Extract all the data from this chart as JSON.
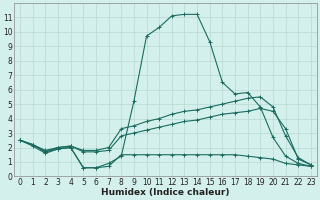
{
  "xlabel": "Humidex (Indice chaleur)",
  "xlim": [
    -0.5,
    23.5
  ],
  "ylim": [
    0,
    12
  ],
  "bg_color": "#d4f0ec",
  "grid_color": "#b8d8d4",
  "line_color": "#1a6b5e",
  "xticks": [
    0,
    1,
    2,
    3,
    4,
    5,
    6,
    7,
    8,
    9,
    10,
    11,
    12,
    13,
    14,
    15,
    16,
    17,
    18,
    19,
    20,
    21,
    22,
    23
  ],
  "yticks": [
    0,
    1,
    2,
    3,
    4,
    5,
    6,
    7,
    8,
    9,
    10,
    11
  ],
  "lines": [
    {
      "x": [
        0,
        1,
        2,
        3,
        4,
        5,
        6,
        7,
        8,
        9,
        10,
        11,
        12,
        13,
        14,
        15,
        16,
        17,
        18,
        19,
        20,
        21,
        22,
        23
      ],
      "y": [
        2.5,
        2.2,
        1.7,
        1.9,
        2.0,
        0.6,
        0.6,
        0.9,
        1.4,
        5.2,
        9.7,
        10.3,
        11.1,
        11.2,
        11.2,
        9.3,
        6.5,
        5.7,
        5.8,
        4.8,
        2.7,
        1.4,
        0.9,
        0.7
      ]
    },
    {
      "x": [
        0,
        1,
        2,
        3,
        4,
        5,
        6,
        7,
        8,
        9,
        10,
        11,
        12,
        13,
        14,
        15,
        16,
        17,
        18,
        19,
        20,
        21,
        22,
        23
      ],
      "y": [
        2.5,
        2.2,
        1.7,
        2.0,
        2.1,
        1.8,
        1.8,
        2.0,
        3.3,
        3.5,
        3.8,
        4.0,
        4.3,
        4.5,
        4.6,
        4.8,
        5.0,
        5.2,
        5.4,
        5.5,
        4.8,
        2.8,
        1.3,
        0.8
      ]
    },
    {
      "x": [
        0,
        1,
        2,
        3,
        4,
        5,
        6,
        7,
        8,
        9,
        10,
        11,
        12,
        13,
        14,
        15,
        16,
        17,
        18,
        19,
        20,
        21,
        22,
        23
      ],
      "y": [
        2.5,
        2.2,
        1.8,
        2.0,
        2.1,
        1.7,
        1.7,
        1.8,
        2.8,
        3.0,
        3.2,
        3.4,
        3.6,
        3.8,
        3.9,
        4.1,
        4.3,
        4.4,
        4.5,
        4.7,
        4.5,
        3.3,
        1.2,
        0.8
      ]
    },
    {
      "x": [
        0,
        1,
        2,
        3,
        4,
        5,
        6,
        7,
        8,
        9,
        10,
        11,
        12,
        13,
        14,
        15,
        16,
        17,
        18,
        19,
        20,
        21,
        22,
        23
      ],
      "y": [
        2.5,
        2.1,
        1.6,
        1.9,
        2.0,
        0.6,
        0.6,
        0.7,
        1.5,
        1.5,
        1.5,
        1.5,
        1.5,
        1.5,
        1.5,
        1.5,
        1.5,
        1.5,
        1.4,
        1.3,
        1.2,
        0.9,
        0.8,
        0.7
      ]
    }
  ]
}
